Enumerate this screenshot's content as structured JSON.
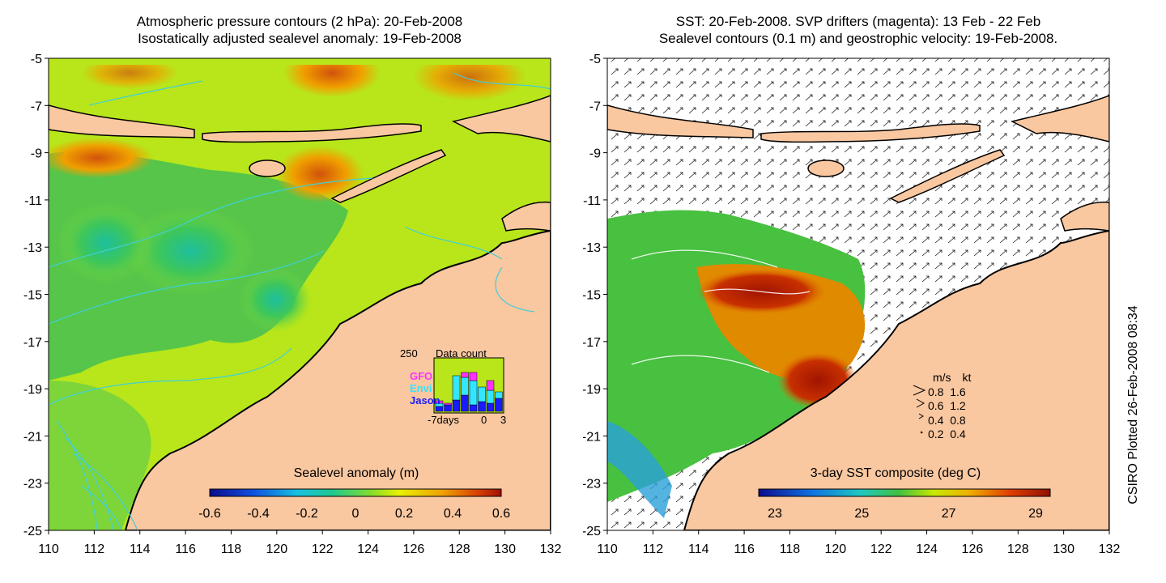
{
  "left_panel": {
    "title_line1": "Atmospheric pressure contours (2 hPa): 20-Feb-2008",
    "title_line2": "Isostatically adjusted sealevel anomaly: 19-Feb-2008",
    "y_ticks": [
      "-5",
      "-7",
      "-9",
      "-11",
      "-13",
      "-15",
      "-17",
      "-19",
      "-21",
      "-23",
      "-25"
    ],
    "x_ticks": [
      "110",
      "112",
      "114",
      "116",
      "118",
      "120",
      "122",
      "124",
      "126",
      "128",
      "130",
      "132"
    ],
    "colorbar": {
      "label": "Sealevel anomaly (m)",
      "ticks": [
        "-0.6",
        "-0.4",
        "-0.2",
        "0",
        "0.2",
        "0.4",
        "0.6"
      ]
    },
    "data_count_inset": {
      "title": "Data count",
      "y_max_label": "250",
      "x_labels": [
        "-7days",
        "0",
        "3"
      ],
      "legend": [
        {
          "name": "GFO",
          "color": "#ff33ff"
        },
        {
          "name": "Envi",
          "color": "#33e5ff"
        },
        {
          "name": "Jason",
          "color": "#1a1aff"
        }
      ]
    }
  },
  "right_panel": {
    "title_line1": "SST: 20-Feb-2008. SVP drifters (magenta): 13 Feb - 22 Feb",
    "title_line2": "Sealevel contours (0.1 m) and geostrophic velocity: 19-Feb-2008.",
    "y_ticks": [
      "-5",
      "-7",
      "-9",
      "-11",
      "-13",
      "-15",
      "-17",
      "-19",
      "-21",
      "-23",
      "-25"
    ],
    "x_ticks": [
      "110",
      "112",
      "114",
      "116",
      "118",
      "120",
      "122",
      "124",
      "126",
      "128",
      "130",
      "132"
    ],
    "colorbar": {
      "label": "3-day SST composite (deg C)",
      "ticks": [
        "23",
        "25",
        "27",
        "29"
      ]
    },
    "velocity_legend": {
      "header_ms": "m/s",
      "header_kt": "kt",
      "rows": [
        {
          "ms": "0.8",
          "kt": "1.6"
        },
        {
          "ms": "0.6",
          "kt": "1.2"
        },
        {
          "ms": "0.4",
          "kt": "0.8"
        },
        {
          "ms": "0.2",
          "kt": "0.4"
        }
      ]
    }
  },
  "side_credit": "CSIRO Plotted 26-Feb-2008 08:34",
  "colors": {
    "land": "#f9c7a0",
    "anomaly_high": "#c24a0a",
    "anomaly_mid": "#ccf000",
    "anomaly_low": "#1cc48a",
    "contour": "#3fd0d8",
    "sst_warm": "#aa1a00"
  }
}
